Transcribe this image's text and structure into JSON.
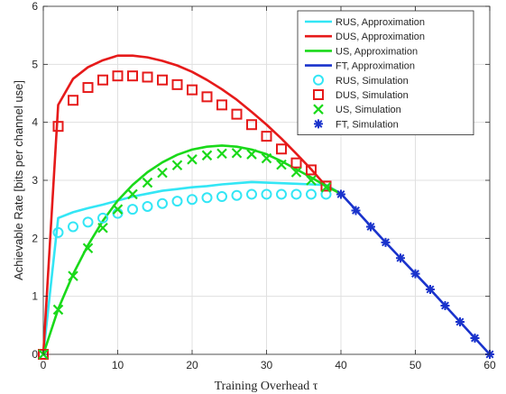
{
  "chart_data": {
    "type": "line",
    "xlabel": "Training Overhead τ",
    "ylabel": "Achievable Rate [bits per channel use]",
    "xlim": [
      0,
      60
    ],
    "ylim": [
      0,
      6
    ],
    "xticks": [
      0,
      10,
      20,
      30,
      40,
      50,
      60
    ],
    "yticks": [
      0,
      1,
      2,
      3,
      4,
      5,
      6
    ],
    "grid": true,
    "legend_position": "top-right",
    "series": [
      {
        "name": "RUS, Approximation",
        "style": "line",
        "color": "#33e6f5",
        "x": [
          0,
          2,
          4,
          6,
          8,
          10,
          12,
          14,
          16,
          18,
          20,
          22,
          24,
          26,
          28,
          30,
          32,
          34,
          36,
          38,
          40
        ],
        "y": [
          0,
          2.35,
          2.45,
          2.52,
          2.58,
          2.65,
          2.72,
          2.77,
          2.82,
          2.85,
          2.88,
          2.9,
          2.93,
          2.95,
          2.97,
          2.96,
          2.95,
          2.94,
          2.93,
          2.92,
          2.77
        ]
      },
      {
        "name": "DUS, Approximation",
        "style": "line",
        "color": "#e61a1a",
        "x": [
          0,
          2,
          4,
          6,
          8,
          10,
          12,
          14,
          16,
          18,
          20,
          22,
          24,
          26,
          28,
          30,
          32,
          34,
          36,
          38,
          40
        ],
        "y": [
          0,
          4.3,
          4.75,
          4.95,
          5.07,
          5.15,
          5.15,
          5.12,
          5.06,
          4.98,
          4.87,
          4.73,
          4.57,
          4.39,
          4.18,
          3.96,
          3.72,
          3.46,
          3.19,
          2.9,
          2.77
        ]
      },
      {
        "name": "US, Approximation",
        "style": "line",
        "color": "#1ad91a",
        "x": [
          0,
          2,
          4,
          6,
          8,
          10,
          12,
          14,
          16,
          18,
          20,
          22,
          24,
          26,
          28,
          30,
          32,
          34,
          36,
          38,
          40
        ],
        "y": [
          0,
          0.78,
          1.38,
          1.88,
          2.3,
          2.65,
          2.92,
          3.14,
          3.31,
          3.44,
          3.53,
          3.58,
          3.6,
          3.58,
          3.53,
          3.45,
          3.33,
          3.19,
          3.05,
          2.9,
          2.77
        ]
      },
      {
        "name": "FT, Approximation",
        "style": "line",
        "color": "#1a33cc",
        "x": [
          40,
          42,
          44,
          46,
          48,
          50,
          52,
          54,
          56,
          58,
          60
        ],
        "y": [
          2.77,
          2.49,
          2.21,
          1.93,
          1.66,
          1.39,
          1.12,
          0.84,
          0.56,
          0.28,
          0
        ]
      },
      {
        "name": "RUS, Simulation",
        "style": "marker",
        "marker": "circle",
        "color": "#33e6f5",
        "x": [
          0,
          2,
          4,
          6,
          8,
          10,
          12,
          14,
          16,
          18,
          20,
          22,
          24,
          26,
          28,
          30,
          32,
          34,
          36,
          38
        ],
        "y": [
          0,
          2.1,
          2.2,
          2.28,
          2.35,
          2.43,
          2.5,
          2.55,
          2.6,
          2.64,
          2.67,
          2.7,
          2.72,
          2.74,
          2.76,
          2.76,
          2.76,
          2.76,
          2.76,
          2.76
        ]
      },
      {
        "name": "DUS, Simulation",
        "style": "marker",
        "marker": "square",
        "color": "#e61a1a",
        "x": [
          0,
          2,
          4,
          6,
          8,
          10,
          12,
          14,
          16,
          18,
          20,
          22,
          24,
          26,
          28,
          30,
          32,
          34,
          36,
          38
        ],
        "y": [
          0,
          3.93,
          4.38,
          4.6,
          4.73,
          4.8,
          4.8,
          4.78,
          4.73,
          4.65,
          4.56,
          4.44,
          4.3,
          4.14,
          3.96,
          3.76,
          3.54,
          3.3,
          3.18,
          2.9
        ]
      },
      {
        "name": "US, Simulation",
        "style": "marker",
        "marker": "x",
        "color": "#1ad91a",
        "x": [
          0,
          2,
          4,
          6,
          8,
          10,
          12,
          14,
          16,
          18,
          20,
          22,
          24,
          26,
          28,
          30,
          32,
          34,
          36,
          38
        ],
        "y": [
          0,
          0.77,
          1.35,
          1.83,
          2.18,
          2.5,
          2.76,
          2.96,
          3.13,
          3.26,
          3.36,
          3.43,
          3.46,
          3.47,
          3.45,
          3.38,
          3.27,
          3.14,
          3.0,
          2.88
        ]
      },
      {
        "name": "FT, Simulation",
        "style": "marker",
        "marker": "asterisk",
        "color": "#1a33cc",
        "x": [
          40,
          42,
          44,
          46,
          48,
          50,
          52,
          54,
          56,
          58,
          60
        ],
        "y": [
          2.76,
          2.48,
          2.2,
          1.93,
          1.66,
          1.39,
          1.12,
          0.84,
          0.56,
          0.28,
          0
        ]
      }
    ]
  }
}
